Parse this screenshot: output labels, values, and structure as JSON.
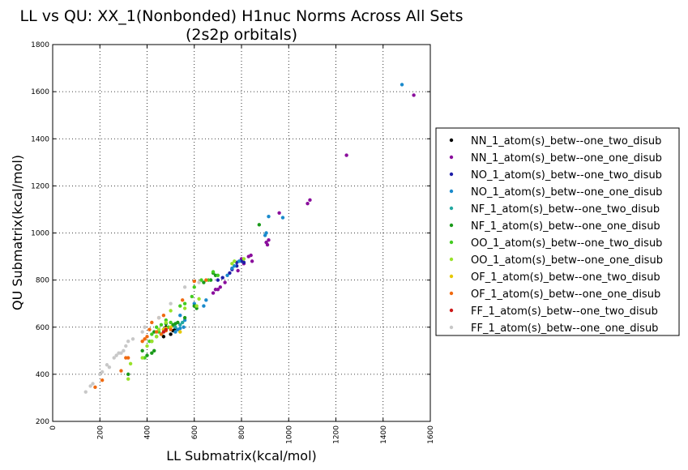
{
  "chart_data": {
    "type": "scatter",
    "title": "LL vs QU: XX_1(Nonbonded) H1nuc Norms Across All Sets",
    "subtitle": "(2s2p orbitals)",
    "xlabel": "LL Submatrix(kcal/mol)",
    "ylabel": "QU Submatrix(kcal/mol)",
    "xlim": [
      0,
      1600
    ],
    "ylim": [
      200,
      1800
    ],
    "xticks": [
      "0",
      "200",
      "400",
      "600",
      "800",
      "1000",
      "1200",
      "1400",
      "1600"
    ],
    "yticks": [
      "200",
      "400",
      "600",
      "800",
      "1000",
      "1200",
      "1400",
      "1600",
      "1800"
    ],
    "grid": true,
    "legend_position": "right",
    "series": [
      {
        "name": "NN_1_atom(s)_betw--one_two_disub",
        "color": "#000000",
        "points": [
          [
            470,
            560
          ],
          [
            480,
            600
          ],
          [
            500,
            570
          ],
          [
            510,
            585
          ],
          [
            520,
            595
          ]
        ]
      },
      {
        "name": "NN_1_atom(s)_betw--one_one_disub",
        "color": "#8a0e9c",
        "points": [
          [
            1530,
            1585
          ],
          [
            1245,
            1330
          ],
          [
            1090,
            1140
          ],
          [
            1080,
            1125
          ],
          [
            960,
            1085
          ],
          [
            915,
            970
          ],
          [
            910,
            950
          ],
          [
            905,
            960
          ],
          [
            840,
            905
          ],
          [
            845,
            880
          ],
          [
            830,
            900
          ],
          [
            800,
            890
          ],
          [
            810,
            870
          ],
          [
            785,
            840
          ],
          [
            700,
            760
          ],
          [
            690,
            760
          ],
          [
            680,
            745
          ],
          [
            710,
            770
          ],
          [
            730,
            790
          ]
        ]
      },
      {
        "name": "NO_1_atom(s)_betw--one_two_disub",
        "color": "#1e1ea8",
        "points": [
          [
            700,
            800
          ],
          [
            720,
            810
          ],
          [
            750,
            830
          ],
          [
            760,
            845
          ],
          [
            780,
            860
          ],
          [
            800,
            880
          ],
          [
            810,
            875
          ],
          [
            780,
            875
          ]
        ]
      },
      {
        "name": "NO_1_atom(s)_betw--one_one_disub",
        "color": "#1a8acc",
        "points": [
          [
            1480,
            1630
          ],
          [
            975,
            1065
          ],
          [
            915,
            1070
          ],
          [
            905,
            1000
          ],
          [
            900,
            990
          ],
          [
            790,
            880
          ],
          [
            770,
            860
          ],
          [
            760,
            850
          ],
          [
            740,
            820
          ],
          [
            650,
            715
          ],
          [
            640,
            690
          ],
          [
            600,
            700
          ],
          [
            560,
            630
          ],
          [
            555,
            600
          ],
          [
            540,
            595
          ],
          [
            530,
            590
          ],
          [
            520,
            580
          ],
          [
            540,
            650
          ]
        ]
      },
      {
        "name": "NF_1_atom(s)_betw--one_two_disub",
        "color": "#23a8a0",
        "points": [
          [
            540,
            610
          ],
          [
            550,
            620
          ],
          [
            520,
            600
          ]
        ]
      },
      {
        "name": "NF_1_atom(s)_betw--one_one_disub",
        "color": "#1a9a1a",
        "points": [
          [
            875,
            1035
          ],
          [
            680,
            830
          ],
          [
            690,
            820
          ],
          [
            670,
            800
          ],
          [
            640,
            790
          ],
          [
            610,
            680
          ],
          [
            600,
            690
          ],
          [
            560,
            640
          ],
          [
            530,
            620
          ],
          [
            520,
            615
          ],
          [
            510,
            610
          ],
          [
            480,
            615
          ],
          [
            460,
            570
          ],
          [
            440,
            560
          ],
          [
            430,
            580
          ],
          [
            420,
            540
          ],
          [
            430,
            500
          ],
          [
            420,
            490
          ],
          [
            400,
            480
          ],
          [
            380,
            500
          ],
          [
            320,
            400
          ]
        ]
      },
      {
        "name": "OO_1_atom(s)_betw--one_two_disub",
        "color": "#44cc22",
        "points": [
          [
            700,
            820
          ],
          [
            680,
            835
          ],
          [
            660,
            800
          ],
          [
            630,
            800
          ],
          [
            600,
            770
          ],
          [
            590,
            730
          ],
          [
            560,
            700
          ],
          [
            540,
            690
          ],
          [
            500,
            620
          ],
          [
            490,
            600
          ],
          [
            470,
            590
          ],
          [
            450,
            580
          ],
          [
            420,
            570
          ],
          [
            410,
            540
          ],
          [
            390,
            470
          ],
          [
            440,
            600
          ],
          [
            460,
            610
          ],
          [
            480,
            630
          ]
        ]
      },
      {
        "name": "OO_1_atom(s)_betw--one_one_disub",
        "color": "#99e22a",
        "points": [
          [
            810,
            890
          ],
          [
            770,
            880
          ],
          [
            760,
            870
          ],
          [
            620,
            720
          ],
          [
            610,
            690
          ],
          [
            560,
            680
          ],
          [
            500,
            670
          ],
          [
            480,
            620
          ],
          [
            450,
            590
          ],
          [
            440,
            560
          ],
          [
            420,
            540
          ],
          [
            400,
            520
          ],
          [
            330,
            445
          ],
          [
            320,
            380
          ],
          [
            380,
            470
          ]
        ]
      },
      {
        "name": "OF_1_atom(s)_betw--one_two_disub",
        "color": "#e6c800",
        "points": [
          [
            540,
            580
          ],
          [
            500,
            600
          ],
          [
            480,
            595
          ],
          [
            470,
            590
          ]
        ]
      },
      {
        "name": "OF_1_atom(s)_betw--one_one_disub",
        "color": "#f06a10",
        "points": [
          [
            600,
            795
          ],
          [
            650,
            800
          ],
          [
            550,
            715
          ],
          [
            470,
            650
          ],
          [
            450,
            640
          ],
          [
            420,
            620
          ],
          [
            410,
            590
          ],
          [
            400,
            560
          ],
          [
            390,
            550
          ],
          [
            380,
            540
          ],
          [
            320,
            470
          ],
          [
            310,
            470
          ],
          [
            290,
            415
          ],
          [
            210,
            375
          ],
          [
            180,
            345
          ],
          [
            460,
            570
          ],
          [
            440,
            580
          ],
          [
            480,
            585
          ],
          [
            500,
            590
          ]
        ]
      },
      {
        "name": "FF_1_atom(s)_betw--one_two_disub",
        "color": "#cc1a1a",
        "points": [
          [
            480,
            590
          ],
          [
            470,
            580
          ]
        ]
      },
      {
        "name": "FF_1_atom(s)_betw--one_one_disub",
        "color": "#c8c8c8",
        "points": [
          [
            140,
            325
          ],
          [
            160,
            350
          ],
          [
            170,
            360
          ],
          [
            200,
            400
          ],
          [
            210,
            410
          ],
          [
            230,
            440
          ],
          [
            240,
            430
          ],
          [
            260,
            470
          ],
          [
            270,
            480
          ],
          [
            280,
            490
          ],
          [
            290,
            490
          ],
          [
            300,
            500
          ],
          [
            310,
            520
          ],
          [
            320,
            540
          ],
          [
            340,
            550
          ],
          [
            380,
            580
          ],
          [
            390,
            600
          ],
          [
            450,
            640
          ],
          [
            500,
            700
          ],
          [
            560,
            770
          ],
          [
            620,
            790
          ]
        ]
      }
    ]
  }
}
